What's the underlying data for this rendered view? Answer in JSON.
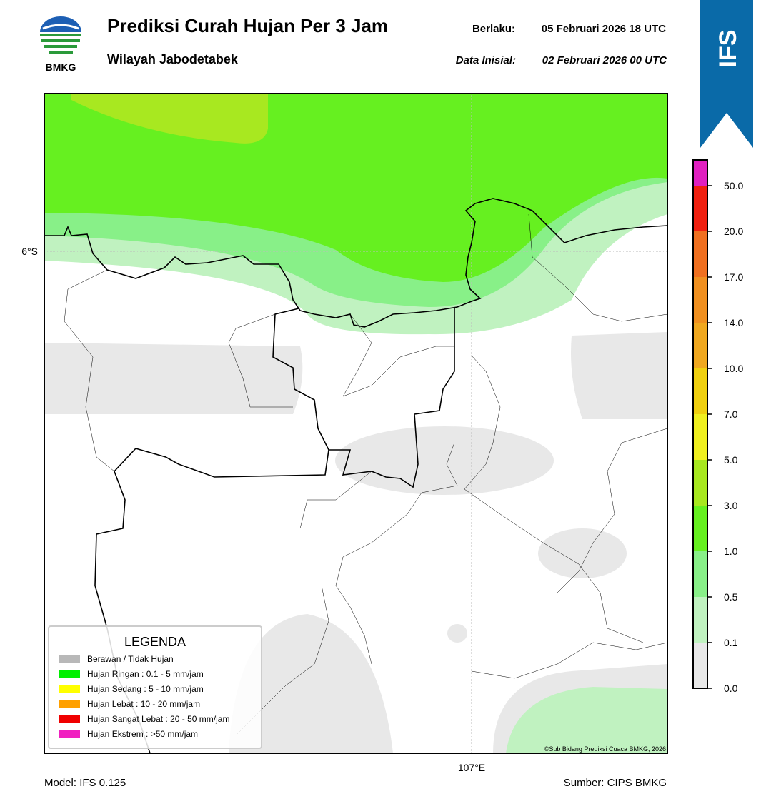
{
  "header": {
    "logo_text": "BMKG",
    "title": "Prediksi Curah Hujan Per 3 Jam",
    "subtitle": "Wilayah Jabodetabek",
    "valid_label": "Berlaku:",
    "valid_time": "05 Februari 2026 18 UTC",
    "init_label": "Data Inisial:",
    "init_time": "02 Februari 2026 00 UTC",
    "badge": "IFS"
  },
  "map": {
    "lat_label": "6°S",
    "lon_label": "107°E",
    "credit": "©Sub Bidang Prediksi Cuaca BMKG, 2026"
  },
  "legend": {
    "title": "LEGENDA",
    "items": [
      {
        "label": "Berawan / Tidak Hujan",
        "color": "#b8b8b8"
      },
      {
        "label": "Hujan Ringan : 0.1 - 5 mm/jam",
        "color": "#00f000"
      },
      {
        "label": "Hujan Sedang : 5 - 10 mm/jam",
        "color": "#ffff00"
      },
      {
        "label": "Hujan Lebat : 10 - 20 mm/jam",
        "color": "#ffa000"
      },
      {
        "label": "Hujan Sangat Lebat : 20 - 50 mm/jam",
        "color": "#f00000"
      },
      {
        "label": "Hujan Ekstrem : >50 mm/jam",
        "color": "#f020c0"
      }
    ]
  },
  "colorbar": {
    "ticks": [
      {
        "value": 0,
        "label": "0.0"
      },
      {
        "value": 0.1,
        "label": "0.1"
      },
      {
        "value": 0.5,
        "label": "0.5"
      },
      {
        "value": 1,
        "label": "1.0"
      },
      {
        "value": 3,
        "label": "3.0"
      },
      {
        "value": 5,
        "label": "5.0"
      },
      {
        "value": 7,
        "label": "7.0"
      },
      {
        "value": 10,
        "label": "10.0"
      },
      {
        "value": 14,
        "label": "14.0"
      },
      {
        "value": 17,
        "label": "17.0"
      },
      {
        "value": 20,
        "label": "20.0"
      },
      {
        "value": 50,
        "label": "50.0"
      }
    ],
    "colors": [
      "#e8e8e8",
      "#c0f2c0",
      "#88f088",
      "#66f020",
      "#a8e820",
      "#f0f020",
      "#f0d010",
      "#f0a820",
      "#f09020",
      "#f07020",
      "#f02010",
      "#e020c0"
    ]
  },
  "footer": {
    "model": "Model: IFS 0.125",
    "source": "Sumber: CIPS BMKG"
  }
}
